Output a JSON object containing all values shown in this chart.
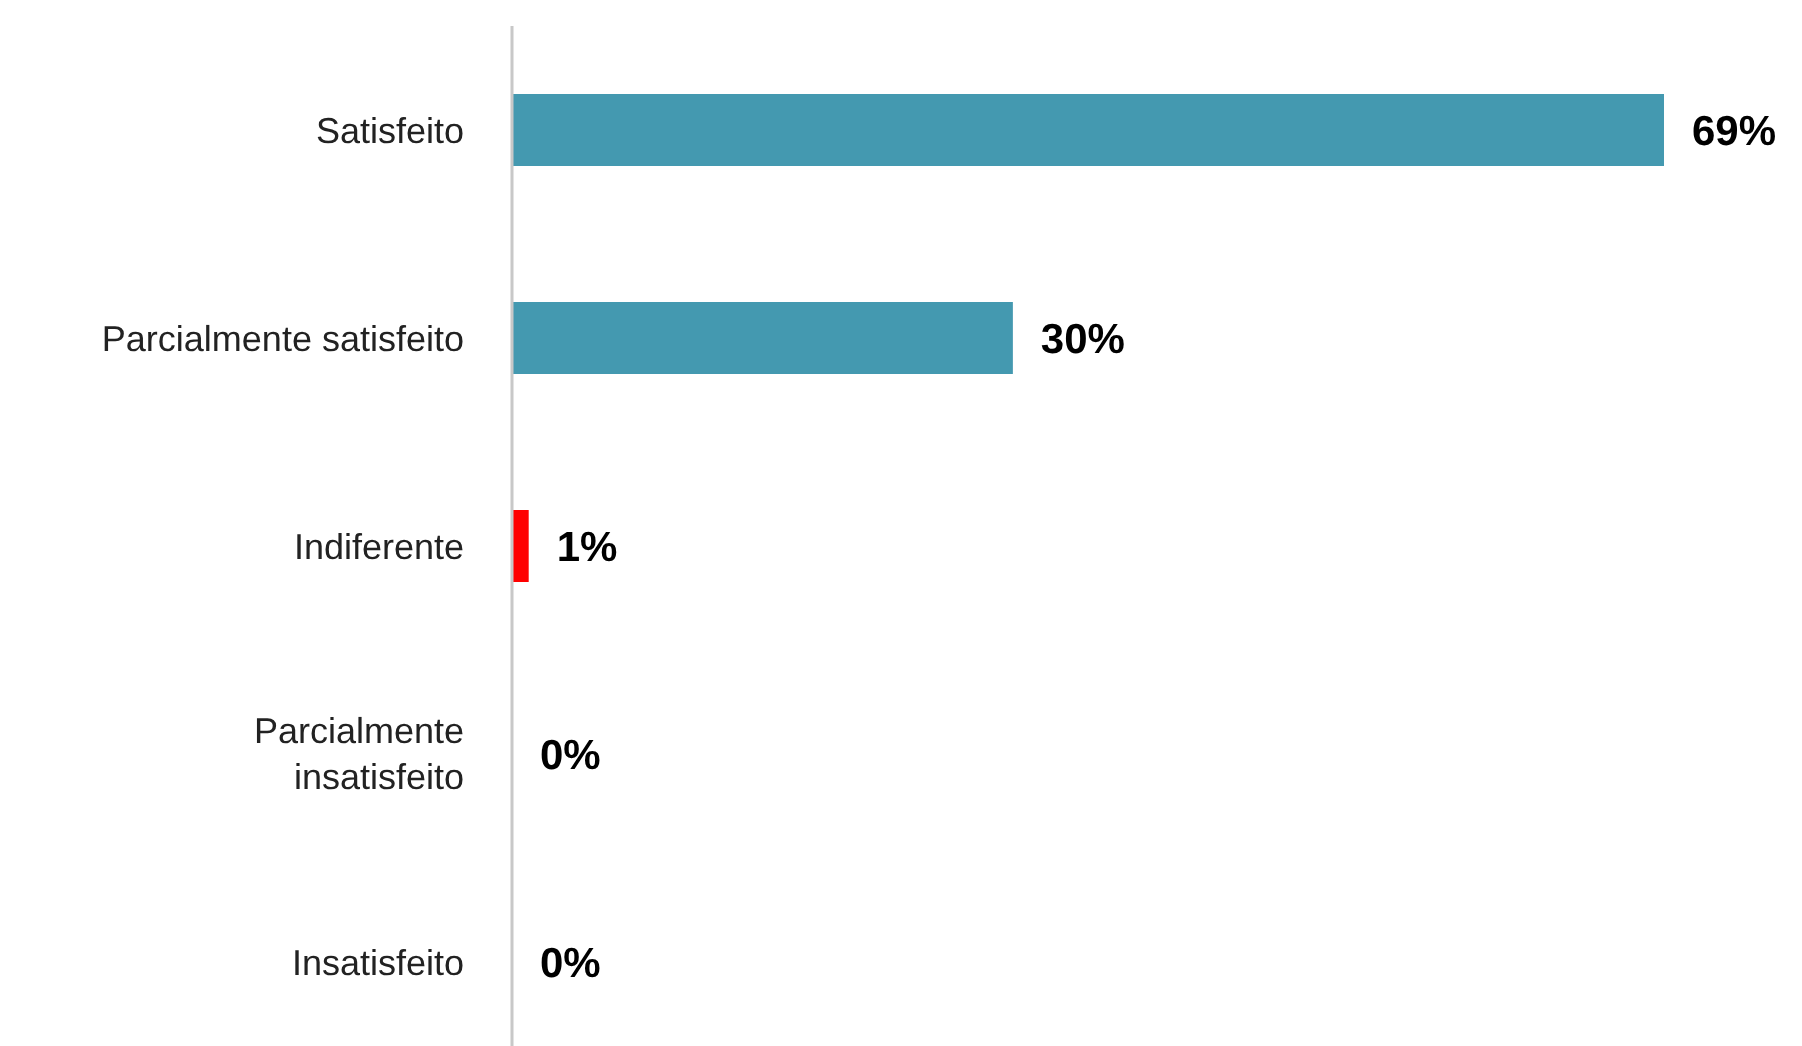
{
  "chart_data": {
    "type": "bar",
    "orientation": "horizontal",
    "categories": [
      "Satisfeito",
      "Parcialmente satisfeito",
      "Indiferente",
      "Parcialmente insatisfeito",
      "Insatisfeito"
    ],
    "values": [
      69,
      30,
      1,
      0,
      0
    ],
    "colors": [
      "#4499b0",
      "#4499b0",
      "#ff0000",
      "#4499b0",
      "#4499b0"
    ],
    "value_labels": [
      "69%",
      "30%",
      "1%",
      "0%",
      "0%"
    ],
    "tick_labels": "y"
  }
}
